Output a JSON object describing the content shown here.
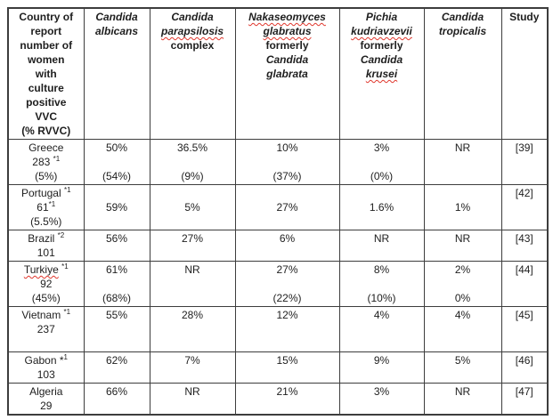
{
  "colors": {
    "text": "#1e1e1e",
    "border": "#3d3d3d",
    "spellcheck_squiggle": "#e0362c",
    "background": "#ffffff"
  },
  "table": {
    "columns": [
      {
        "id": "country",
        "header": [
          [
            {
              "t": "Country of"
            }
          ],
          [
            {
              "t": "report"
            }
          ],
          [
            {
              "t": "number of"
            }
          ],
          [
            {
              "t": "women"
            }
          ],
          [
            {
              "t": "with"
            }
          ],
          [
            {
              "t": "culture"
            }
          ],
          [
            {
              "t": "positive"
            }
          ],
          [
            {
              "t": "VVC"
            }
          ],
          [
            {
              "t": "(% RVVC)"
            }
          ]
        ]
      },
      {
        "id": "candida-albicans",
        "header": [
          [
            {
              "t": "Candida",
              "i": true
            }
          ],
          [
            {
              "t": "albicans",
              "i": true
            }
          ]
        ]
      },
      {
        "id": "candida-parapsilosis-complex",
        "header": [
          [
            {
              "t": "Candida",
              "i": true
            }
          ],
          [
            {
              "t": "parapsilosis",
              "i": true,
              "sq": true
            }
          ],
          [
            {
              "t": "complex"
            }
          ]
        ]
      },
      {
        "id": "nakaseomyces-glabratus",
        "header": [
          [
            {
              "t": "Nakaseomyces",
              "i": true,
              "sq": true
            }
          ],
          [
            {
              "t": "glabratus",
              "i": true,
              "sq": true
            }
          ],
          [
            {
              "t": "formerly"
            }
          ],
          [
            {
              "t": "Candida",
              "i": true
            }
          ],
          [
            {
              "t": "glabrata",
              "i": true
            }
          ]
        ]
      },
      {
        "id": "pichia-kudriavzevii",
        "header": [
          [
            {
              "t": "Pichia",
              "i": true
            }
          ],
          [
            {
              "t": "kudriavzevii",
              "i": true,
              "sq": true
            }
          ],
          [
            {
              "t": "formerly"
            }
          ],
          [
            {
              "t": "Candida",
              "i": true
            }
          ],
          [
            {
              "t": "krusei",
              "i": true,
              "sq": true
            }
          ]
        ]
      },
      {
        "id": "candida-tropicalis",
        "header": [
          [
            {
              "t": "Candida",
              "i": true
            }
          ],
          [
            {
              "t": "tropicalis",
              "i": true
            }
          ]
        ]
      },
      {
        "id": "study",
        "header": [
          [
            {
              "t": "Study"
            }
          ]
        ]
      }
    ],
    "rows": [
      {
        "id": "greece",
        "cells": [
          [
            [
              {
                "t": "Greece"
              }
            ],
            [
              {
                "t": "283 "
              },
              {
                "t": "*1",
                "sup": true
              }
            ],
            [
              {
                "t": "(5%)"
              }
            ]
          ],
          [
            [
              {
                "t": "50%"
              }
            ],
            [],
            [
              {
                "t": "(54%)"
              }
            ]
          ],
          [
            [
              {
                "t": "36.5%"
              }
            ],
            [],
            [
              {
                "t": "(9%)"
              }
            ]
          ],
          [
            [
              {
                "t": "10%"
              }
            ],
            [],
            [
              {
                "t": "(37%)"
              }
            ]
          ],
          [
            [
              {
                "t": "3%"
              }
            ],
            [],
            [
              {
                "t": "(0%)"
              }
            ]
          ],
          [
            [
              {
                "t": "NR"
              }
            ]
          ],
          [
            [
              {
                "t": "[39]"
              }
            ]
          ]
        ]
      },
      {
        "id": "portugal",
        "cells": [
          [
            [
              {
                "t": "Portugal "
              },
              {
                "t": "*1",
                "sup": true
              }
            ],
            [
              {
                "t": "61"
              },
              {
                "t": "*1",
                "sup": true
              }
            ],
            [
              {
                "t": "(5.5%)"
              }
            ]
          ],
          [
            [],
            [
              {
                "t": "59%"
              }
            ]
          ],
          [
            [],
            [
              {
                "t": "5%"
              }
            ]
          ],
          [
            [],
            [
              {
                "t": "27%"
              }
            ]
          ],
          [
            [],
            [
              {
                "t": "1.6%"
              }
            ]
          ],
          [
            [],
            [
              {
                "t": "1%"
              }
            ]
          ],
          [
            [
              {
                "t": "[42]"
              }
            ]
          ]
        ]
      },
      {
        "id": "brazil",
        "cells": [
          [
            [
              {
                "t": "Brazil "
              },
              {
                "t": "*2",
                "sup": true
              }
            ],
            [
              {
                "t": "101"
              }
            ]
          ],
          [
            [
              {
                "t": "56%"
              }
            ]
          ],
          [
            [
              {
                "t": "27%"
              }
            ]
          ],
          [
            [
              {
                "t": "6%"
              }
            ]
          ],
          [
            [
              {
                "t": "NR"
              }
            ]
          ],
          [
            [
              {
                "t": "NR"
              }
            ]
          ],
          [
            [
              {
                "t": "[43]"
              }
            ]
          ]
        ]
      },
      {
        "id": "turkiye",
        "cells": [
          [
            [
              {
                "t": "Turkiye",
                "sq": true
              },
              {
                "t": " "
              },
              {
                "t": "*1",
                "sup": true
              }
            ],
            [
              {
                "t": "92"
              }
            ],
            [
              {
                "t": "(45%)"
              }
            ]
          ],
          [
            [
              {
                "t": "61%"
              }
            ],
            [],
            [
              {
                "t": "(68%)"
              }
            ]
          ],
          [
            [
              {
                "t": "NR"
              }
            ]
          ],
          [
            [
              {
                "t": "27%"
              }
            ],
            [],
            [
              {
                "t": "(22%)"
              }
            ]
          ],
          [
            [
              {
                "t": "8%"
              }
            ],
            [],
            [
              {
                "t": "(10%)"
              }
            ]
          ],
          [
            [
              {
                "t": "2%"
              }
            ],
            [],
            [
              {
                "t": "0%"
              }
            ]
          ],
          [
            [
              {
                "t": "[44]"
              }
            ]
          ]
        ]
      },
      {
        "id": "vietnam",
        "cells": [
          [
            [
              {
                "t": "Vietnam "
              },
              {
                "t": "*1",
                "sup": true
              }
            ],
            [
              {
                "t": "237"
              }
            ],
            []
          ],
          [
            [
              {
                "t": "55%"
              }
            ]
          ],
          [
            [
              {
                "t": "28%"
              }
            ]
          ],
          [
            [
              {
                "t": "12%"
              }
            ]
          ],
          [
            [
              {
                "t": "4%"
              }
            ]
          ],
          [
            [
              {
                "t": "4%"
              }
            ]
          ],
          [
            [
              {
                "t": "[45]"
              }
            ]
          ]
        ]
      },
      {
        "id": "gabon",
        "cells": [
          [
            [
              {
                "t": "Gabon *"
              },
              {
                "t": "1",
                "sup": true
              }
            ],
            [
              {
                "t": "103"
              }
            ]
          ],
          [
            [
              {
                "t": "62%"
              }
            ]
          ],
          [
            [
              {
                "t": "7%"
              }
            ]
          ],
          [
            [
              {
                "t": "15%"
              }
            ]
          ],
          [
            [
              {
                "t": "9%"
              }
            ]
          ],
          [
            [
              {
                "t": "5%"
              }
            ]
          ],
          [
            [
              {
                "t": "[46]"
              }
            ]
          ]
        ]
      },
      {
        "id": "algeria",
        "cells": [
          [
            [
              {
                "t": "Algeria"
              }
            ],
            [
              {
                "t": "29"
              }
            ]
          ],
          [
            [
              {
                "t": "66%"
              }
            ]
          ],
          [
            [
              {
                "t": "NR"
              }
            ]
          ],
          [
            [
              {
                "t": "21%"
              }
            ]
          ],
          [
            [
              {
                "t": "3%"
              }
            ]
          ],
          [
            [
              {
                "t": "NR"
              }
            ]
          ],
          [
            [
              {
                "t": "[47]"
              }
            ]
          ]
        ]
      }
    ]
  }
}
